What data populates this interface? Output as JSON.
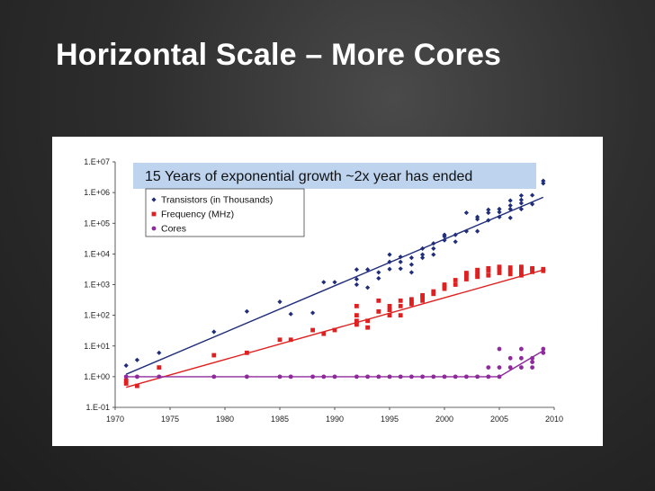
{
  "slide": {
    "title": "Horizontal Scale – More Cores"
  },
  "chart_data": {
    "type": "scatter",
    "banner": "15 Years of exponential growth ~2x year has ended",
    "yscale": "log",
    "ylim": [
      0.1,
      10000000
    ],
    "xlim": [
      1970,
      2010
    ],
    "ytick_labels": [
      "1.E+07",
      "1.E+06",
      "1.E+05",
      "1.E+04",
      "1.E+03",
      "1.E+02",
      "1.E+01",
      "1.E+00",
      "1.E-01"
    ],
    "ytick_values": [
      10000000,
      1000000,
      100000,
      10000,
      1000,
      100,
      10,
      1,
      0.1
    ],
    "xtick_labels": [
      "1970",
      "1975",
      "1980",
      "1985",
      "1990",
      "1995",
      "2000",
      "2005",
      "2010"
    ],
    "xtick_values": [
      1970,
      1975,
      1980,
      1985,
      1990,
      1995,
      2000,
      2005,
      2010
    ],
    "legend_position": "top-left",
    "grid": false,
    "series": [
      {
        "name": "Transistors (in Thousands)",
        "color": "#1f2d7a",
        "marker": "diamond",
        "trend": [
          [
            1971,
            1.2
          ],
          [
            2009,
            700000
          ]
        ],
        "points": [
          [
            1971,
            2.3
          ],
          [
            1972,
            3.5
          ],
          [
            1974,
            6
          ],
          [
            1979,
            29
          ],
          [
            1982,
            134
          ],
          [
            1985,
            275
          ],
          [
            1986,
            110
          ],
          [
            1988,
            120
          ],
          [
            1989,
            1200
          ],
          [
            1990,
            1200
          ],
          [
            1992,
            3100
          ],
          [
            1992,
            1500
          ],
          [
            1992,
            1000
          ],
          [
            1993,
            3100
          ],
          [
            1993,
            800
          ],
          [
            1994,
            1600
          ],
          [
            1994,
            2500
          ],
          [
            1995,
            5500
          ],
          [
            1995,
            9500
          ],
          [
            1995,
            3200
          ],
          [
            1996,
            5500
          ],
          [
            1996,
            8000
          ],
          [
            1996,
            3300
          ],
          [
            1997,
            7500
          ],
          [
            1997,
            4500
          ],
          [
            1997,
            2500
          ],
          [
            1998,
            7500
          ],
          [
            1998,
            15000
          ],
          [
            1998,
            9500
          ],
          [
            1999,
            22000
          ],
          [
            1999,
            9500
          ],
          [
            1999,
            15000
          ],
          [
            2000,
            28000
          ],
          [
            2000,
            42000
          ],
          [
            2000,
            37000
          ],
          [
            2001,
            25000
          ],
          [
            2001,
            42000
          ],
          [
            2002,
            55000
          ],
          [
            2002,
            220000
          ],
          [
            2003,
            135000
          ],
          [
            2003,
            55000
          ],
          [
            2003,
            160000
          ],
          [
            2004,
            125000
          ],
          [
            2004,
            275000
          ],
          [
            2004,
            220000
          ],
          [
            2005,
            230000
          ],
          [
            2005,
            160000
          ],
          [
            2005,
            290000
          ],
          [
            2006,
            290000
          ],
          [
            2006,
            550000
          ],
          [
            2006,
            150000
          ],
          [
            2006,
            380000
          ],
          [
            2007,
            800000
          ],
          [
            2007,
            580000
          ],
          [
            2007,
            450000
          ],
          [
            2007,
            290000
          ],
          [
            2008,
            820000
          ],
          [
            2008,
            420000
          ],
          [
            2009,
            2000000
          ],
          [
            2009,
            2400000
          ]
        ]
      },
      {
        "name": "Frequency (MHz)",
        "color": "#e02020",
        "marker": "square",
        "trend": [
          [
            1971,
            0.45
          ],
          [
            2009,
            3000
          ]
        ],
        "points": [
          [
            1971,
            0.75
          ],
          [
            1971,
            0.6
          ],
          [
            1972,
            0.5
          ],
          [
            1974,
            2
          ],
          [
            1979,
            5
          ],
          [
            1982,
            6
          ],
          [
            1985,
            16
          ],
          [
            1986,
            16
          ],
          [
            1988,
            33
          ],
          [
            1989,
            25
          ],
          [
            1990,
            33
          ],
          [
            1992,
            200
          ],
          [
            1992,
            100
          ],
          [
            1992,
            66
          ],
          [
            1992,
            50
          ],
          [
            1993,
            66
          ],
          [
            1993,
            40
          ],
          [
            1994,
            133
          ],
          [
            1994,
            300
          ],
          [
            1995,
            200
          ],
          [
            1995,
            150
          ],
          [
            1995,
            100
          ],
          [
            1996,
            200
          ],
          [
            1996,
            300
          ],
          [
            1996,
            100
          ],
          [
            1997,
            333
          ],
          [
            1997,
            266
          ],
          [
            1997,
            233
          ],
          [
            1998,
            450
          ],
          [
            1998,
            400
          ],
          [
            1998,
            300
          ],
          [
            1999,
            600
          ],
          [
            1999,
            500
          ],
          [
            2000,
            1000
          ],
          [
            2000,
            733
          ],
          [
            2000,
            866
          ],
          [
            2001,
            1400
          ],
          [
            2001,
            1000
          ],
          [
            2002,
            2000
          ],
          [
            2002,
            1500
          ],
          [
            2002,
            2400
          ],
          [
            2003,
            1800
          ],
          [
            2003,
            3000
          ],
          [
            2003,
            2200
          ],
          [
            2004,
            3400
          ],
          [
            2004,
            2800
          ],
          [
            2004,
            2000
          ],
          [
            2005,
            3800
          ],
          [
            2005,
            3200
          ],
          [
            2005,
            2400
          ],
          [
            2006,
            3600
          ],
          [
            2006,
            3000
          ],
          [
            2006,
            2200
          ],
          [
            2007,
            3200
          ],
          [
            2007,
            2400
          ],
          [
            2007,
            3800
          ],
          [
            2007,
            2000
          ],
          [
            2008,
            3200
          ],
          [
            2008,
            2600
          ],
          [
            2008,
            3400
          ],
          [
            2009,
            3200
          ],
          [
            2009,
            2800
          ]
        ]
      },
      {
        "name": "Cores",
        "color": "#8e2a9c",
        "marker": "circle",
        "trend": [
          [
            1971,
            1
          ],
          [
            2005,
            1
          ],
          [
            2009,
            7
          ]
        ],
        "points": [
          [
            1971,
            1
          ],
          [
            1972,
            1
          ],
          [
            1974,
            1
          ],
          [
            1979,
            1
          ],
          [
            1982,
            1
          ],
          [
            1985,
            1
          ],
          [
            1986,
            1
          ],
          [
            1988,
            1
          ],
          [
            1989,
            1
          ],
          [
            1990,
            1
          ],
          [
            1992,
            1
          ],
          [
            1993,
            1
          ],
          [
            1994,
            1
          ],
          [
            1995,
            1
          ],
          [
            1996,
            1
          ],
          [
            1997,
            1
          ],
          [
            1998,
            1
          ],
          [
            1999,
            1
          ],
          [
            2000,
            1
          ],
          [
            2001,
            1
          ],
          [
            2002,
            1
          ],
          [
            2003,
            1
          ],
          [
            2004,
            1
          ],
          [
            2004,
            2
          ],
          [
            2005,
            8
          ],
          [
            2005,
            2
          ],
          [
            2005,
            1
          ],
          [
            2006,
            2
          ],
          [
            2006,
            4
          ],
          [
            2007,
            8
          ],
          [
            2007,
            4
          ],
          [
            2007,
            2
          ],
          [
            2008,
            4
          ],
          [
            2008,
            2
          ],
          [
            2008,
            3
          ],
          [
            2009,
            8
          ],
          [
            2009,
            6
          ]
        ]
      }
    ]
  }
}
